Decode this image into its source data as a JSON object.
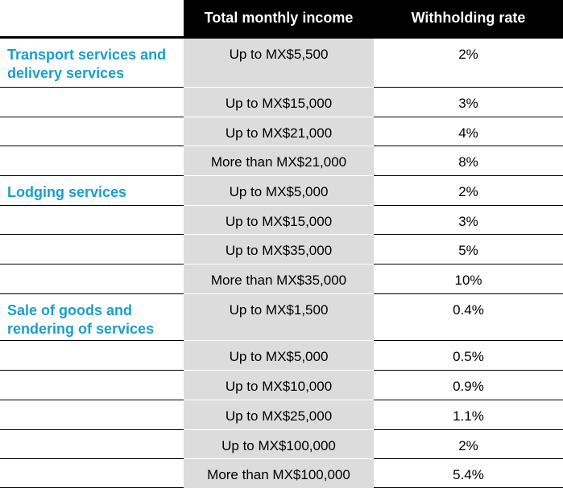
{
  "header": {
    "col1": "",
    "col2": "Total monthly income",
    "col3": "Withholding rate"
  },
  "rows": [
    {
      "category": "Transport services and delivery services",
      "income": "Up to MX$5,500",
      "rate": "2%"
    },
    {
      "category": "",
      "income": "Up to MX$15,000",
      "rate": "3%"
    },
    {
      "category": "",
      "income": "Up to MX$21,000",
      "rate": "4%"
    },
    {
      "category": "",
      "income": "More than MX$21,000",
      "rate": "8%"
    },
    {
      "category": "Lodging services",
      "income": "Up to MX$5,000",
      "rate": "2%"
    },
    {
      "category": "",
      "income": "Up to MX$15,000",
      "rate": "3%"
    },
    {
      "category": "",
      "income": "Up to MX$35,000",
      "rate": "5%"
    },
    {
      "category": "",
      "income": "More than MX$35,000",
      "rate": "10%"
    },
    {
      "category": "Sale of goods and rendering of services",
      "income": "Up to MX$1,500",
      "rate": "0.4%"
    },
    {
      "category": "",
      "income": "Up to MX$5,000",
      "rate": "0.5%"
    },
    {
      "category": "",
      "income": "Up to MX$10,000",
      "rate": "0.9%"
    },
    {
      "category": "",
      "income": "Up to MX$25,000",
      "rate": "1.1%"
    },
    {
      "category": "",
      "income": "Up to MX$100,000",
      "rate": "2%"
    },
    {
      "category": "",
      "income": "More than MX$100,000",
      "rate": "5.4%"
    }
  ]
}
